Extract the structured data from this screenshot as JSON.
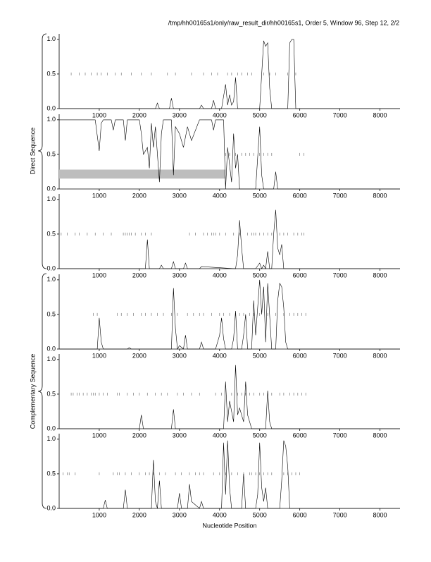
{
  "title": "/tmp/hh00165s1/only/raw_result_dir/hh00165s1, Order 5, Window 96, Step 12, 2/2",
  "xlabel": "Nucleotide Position",
  "group_labels": [
    "Direct Sequence",
    "Complementary Sequence"
  ],
  "chart_data": [
    {
      "type": "line",
      "color": "#000000",
      "xlim": [
        0,
        8500
      ],
      "ylim": [
        0,
        1.08
      ],
      "xticks": [
        1000,
        2000,
        3000,
        4000,
        5000,
        6000,
        7000,
        8000
      ],
      "yticks": [
        {
          "value": 0,
          "label": "0.0"
        },
        0.5,
        {
          "value": 1,
          "label": "1.0"
        }
      ],
      "x": [
        0,
        1000,
        1500,
        2000,
        2400,
        2450,
        2500,
        2750,
        2800,
        2850,
        3500,
        3550,
        3600,
        3800,
        3850,
        3900,
        4050,
        4150,
        4200,
        4250,
        4300,
        4350,
        4400,
        4450,
        4600,
        5000,
        5100,
        5150,
        5200,
        5250,
        5300,
        5700,
        5750,
        5800,
        5850,
        5900,
        6000,
        7000,
        8500
      ],
      "values": [
        0,
        0,
        0,
        0,
        0,
        0.08,
        0,
        0,
        0.15,
        0,
        0,
        0.05,
        0,
        0,
        0.12,
        0,
        0,
        0.35,
        0.05,
        0.2,
        0.05,
        0.1,
        0.45,
        0,
        0,
        0,
        0.98,
        0.9,
        0.95,
        0.3,
        0,
        0,
        0.95,
        1.0,
        1.0,
        0,
        0,
        0,
        0
      ],
      "marker_y": 0.5,
      "marker_positions": [
        300,
        500,
        650,
        800,
        950,
        1050,
        1200,
        1400,
        1550,
        1800,
        2050,
        2300,
        2700,
        2900,
        3300,
        3600,
        3800,
        3950,
        4200,
        4300,
        4450,
        4550,
        4700,
        4800,
        5100,
        5250,
        5400,
        5700,
        5900
      ]
    },
    {
      "type": "line",
      "color": "#000000",
      "xlim": [
        0,
        8500
      ],
      "ylim": [
        0,
        1.08
      ],
      "xticks": [
        1000,
        2000,
        3000,
        4000,
        5000,
        6000,
        7000,
        8000
      ],
      "yticks": [
        {
          "value": 0,
          "label": "0.0"
        },
        0.5,
        {
          "value": 1,
          "label": "1.0"
        }
      ],
      "x": [
        0,
        900,
        1000,
        1050,
        1100,
        1300,
        1350,
        1400,
        1600,
        1650,
        1700,
        2000,
        2050,
        2100,
        2200,
        2250,
        2300,
        2350,
        2400,
        2500,
        2550,
        2600,
        2800,
        2850,
        2900,
        3000,
        3100,
        3200,
        3300,
        3500,
        3800,
        3850,
        3900,
        4000,
        4100,
        4150,
        4200,
        4300,
        4350,
        4400,
        4450,
        4500,
        4900,
        5000,
        5050,
        5100,
        5350,
        5400,
        5450,
        6000,
        8500
      ],
      "values": [
        1,
        1,
        0.55,
        0.95,
        1,
        1,
        0.85,
        1,
        1,
        0.7,
        1,
        1,
        0.8,
        0.5,
        0.6,
        0.3,
        0.95,
        0.6,
        0.9,
        0.1,
        0.8,
        1,
        1,
        0.2,
        0.9,
        0.8,
        0.6,
        0.9,
        0.7,
        1,
        1,
        0.85,
        1,
        1,
        1,
        0,
        0.6,
        0.1,
        0.8,
        0.3,
        0.5,
        0,
        0,
        0.9,
        0.2,
        0,
        0,
        0.25,
        0,
        0,
        0
      ],
      "marker_y": 0.5,
      "marker_positions": [
        4150,
        4250,
        4400,
        4550,
        4650,
        4750,
        4850,
        5000,
        5100,
        5200,
        5300,
        6000,
        6100
      ],
      "band": {
        "color": "#bdbdbd",
        "x": [
          0,
          4150
        ],
        "y": [
          0.15,
          0.28
        ]
      }
    },
    {
      "type": "line",
      "color": "#000000",
      "xlim": [
        0,
        8500
      ],
      "ylim": [
        0,
        1.08
      ],
      "xticks": [
        1000,
        2000,
        3000,
        4000,
        5000,
        6000,
        7000,
        8000
      ],
      "yticks": [
        {
          "value": 0,
          "label": "0.0"
        },
        0.5,
        {
          "value": 1,
          "label": "1.0"
        }
      ],
      "x": [
        0,
        2150,
        2200,
        2250,
        2500,
        2550,
        2600,
        2800,
        2850,
        2900,
        3100,
        3150,
        3200,
        3500,
        3550,
        4400,
        4450,
        4500,
        4550,
        4600,
        4900,
        5000,
        5050,
        5100,
        5150,
        5200,
        5250,
        5300,
        5350,
        5400,
        5450,
        5500,
        5550,
        5600,
        6000,
        8500
      ],
      "values": [
        0,
        0,
        0.42,
        0,
        0,
        0.05,
        0,
        0,
        0.1,
        0,
        0,
        0.08,
        0,
        0,
        0.03,
        0,
        0.2,
        0.7,
        0.3,
        0,
        0,
        0.08,
        0,
        0.05,
        0,
        0.25,
        0,
        0,
        0.5,
        0.85,
        0.3,
        0.2,
        0.35,
        0,
        0,
        0
      ],
      "marker_y": 0.5,
      "marker_positions": [
        50,
        200,
        400,
        500,
        700,
        900,
        1100,
        1300,
        1600,
        1650,
        1700,
        1750,
        1800,
        1900,
        2050,
        2150,
        2300,
        3250,
        3400,
        3600,
        3700,
        3800,
        3850,
        3900,
        4000,
        4150,
        4350,
        4500,
        4700,
        4800,
        4850,
        4900,
        5000,
        5100,
        5200,
        5300,
        5500,
        5600,
        5700,
        5850,
        5950,
        6050,
        6100
      ]
    },
    {
      "type": "line",
      "color": "#000000",
      "xlim": [
        0,
        8500
      ],
      "ylim": [
        0,
        1.08
      ],
      "xticks": [
        1000,
        2000,
        3000,
        4000,
        5000,
        6000,
        7000,
        8000
      ],
      "yticks": [
        {
          "value": 0,
          "label": "0.0"
        },
        0.5,
        {
          "value": 1,
          "label": "1.0"
        }
      ],
      "x": [
        0,
        950,
        1000,
        1050,
        1100,
        1700,
        1750,
        1800,
        2800,
        2850,
        2900,
        2950,
        3000,
        3100,
        3150,
        3200,
        3500,
        3550,
        3600,
        3900,
        4000,
        4050,
        4100,
        4150,
        4300,
        4350,
        4400,
        4450,
        4550,
        4600,
        4650,
        4700,
        4800,
        4850,
        4900,
        4950,
        5000,
        5050,
        5100,
        5150,
        5200,
        5300,
        5400,
        5450,
        5500,
        5550,
        5600,
        5650,
        5700,
        6000,
        8500
      ],
      "values": [
        0,
        0,
        0.45,
        0.1,
        0,
        0,
        0.02,
        0,
        0,
        0.88,
        0.3,
        0,
        0.05,
        0,
        0.2,
        0,
        0,
        0.1,
        0,
        0,
        0.2,
        0.45,
        0.15,
        0,
        0,
        0.15,
        0.55,
        0,
        0,
        0.2,
        0.5,
        0,
        0,
        0.7,
        0.2,
        0.6,
        1.0,
        0.5,
        0.9,
        0.1,
        0.95,
        0,
        0,
        0.7,
        0.95,
        0.9,
        0.6,
        0.1,
        0,
        0,
        0
      ],
      "marker_y": 0.5,
      "marker_positions": [
        850,
        950,
        1450,
        1550,
        1700,
        1850,
        2050,
        2150,
        2300,
        2450,
        2600,
        2800,
        2950,
        3200,
        3350,
        3500,
        3600,
        3800,
        4000,
        4100,
        4250,
        4400,
        4500,
        4600,
        4750,
        4850,
        5000,
        5200,
        5400,
        5600,
        5750,
        5850,
        5950,
        6050,
        6150
      ]
    },
    {
      "type": "line",
      "color": "#000000",
      "xlim": [
        0,
        8500
      ],
      "ylim": [
        0,
        1.08
      ],
      "xticks": [
        1000,
        2000,
        3000,
        4000,
        5000,
        6000,
        7000,
        8000
      ],
      "yticks": [
        {
          "value": 0,
          "label": "0.0"
        },
        0.5,
        {
          "value": 1,
          "label": "1.0"
        }
      ],
      "x": [
        0,
        2000,
        2050,
        2100,
        2800,
        2850,
        2900,
        4100,
        4150,
        4200,
        4250,
        4350,
        4400,
        4450,
        4500,
        4600,
        4650,
        4700,
        4800,
        5150,
        5200,
        5250,
        5300,
        8500
      ],
      "values": [
        0,
        0,
        0.2,
        0,
        0,
        0.28,
        0,
        0,
        0.68,
        0.1,
        0.4,
        0.1,
        0.92,
        0.2,
        0.3,
        0.1,
        0.68,
        0.2,
        0,
        0,
        0.55,
        0.1,
        0,
        0
      ],
      "marker_y": 0.5,
      "marker_positions": [
        300,
        350,
        450,
        500,
        600,
        700,
        800,
        850,
        900,
        1000,
        1100,
        1200,
        1450,
        1500,
        1700,
        1850,
        2000,
        2200,
        2400,
        2550,
        2700,
        2950,
        3100,
        3300,
        3500,
        3900,
        4050,
        4300,
        4450,
        4550,
        4650,
        4750,
        4850,
        5000,
        5100,
        5200,
        5300,
        5500,
        5600,
        5750,
        5850,
        5950,
        6050,
        6150
      ]
    },
    {
      "type": "line",
      "color": "#000000",
      "xlim": [
        0,
        8500
      ],
      "ylim": [
        0,
        1.08
      ],
      "xticks": [
        1000,
        2000,
        3000,
        4000,
        5000,
        6000,
        7000,
        8000
      ],
      "yticks": [
        {
          "value": 0,
          "label": "0.0"
        },
        0.5,
        {
          "value": 1,
          "label": "1.0"
        }
      ],
      "x": [
        0,
        1100,
        1150,
        1200,
        1600,
        1650,
        1700,
        2300,
        2350,
        2400,
        2450,
        2500,
        2550,
        2950,
        3000,
        3050,
        3200,
        3250,
        3300,
        3500,
        3550,
        3600,
        4050,
        4100,
        4150,
        4200,
        4250,
        4300,
        4350,
        4550,
        4600,
        4650,
        4900,
        4950,
        5000,
        5050,
        5100,
        5150,
        5200,
        5500,
        5550,
        5600,
        5650,
        5700,
        5750,
        6000,
        8500
      ],
      "values": [
        0,
        0,
        0.12,
        0,
        0,
        0.27,
        0,
        0,
        0.7,
        0.1,
        0,
        0.4,
        0,
        0,
        0.22,
        0,
        0,
        0.35,
        0.1,
        0,
        0.1,
        0,
        0,
        0.95,
        0.2,
        0.98,
        0.3,
        0,
        0,
        0,
        0.5,
        0,
        0,
        0.2,
        0.95,
        0.3,
        0.1,
        0.3,
        0,
        0,
        0.4,
        0.98,
        0.9,
        0.6,
        0,
        0,
        0
      ],
      "marker_y": 0.5,
      "marker_positions": [
        100,
        200,
        250,
        400,
        1000,
        1350,
        1450,
        1500,
        1650,
        1800,
        2000,
        2150,
        2250,
        2350,
        2500,
        2650,
        2900,
        3050,
        3250,
        3400,
        3500,
        3600,
        3850,
        4000,
        4150,
        4300,
        4450,
        4600,
        4750,
        4800,
        4900,
        5000,
        5100,
        5200,
        5300,
        5600,
        5700,
        5800,
        5900,
        6000
      ]
    }
  ]
}
